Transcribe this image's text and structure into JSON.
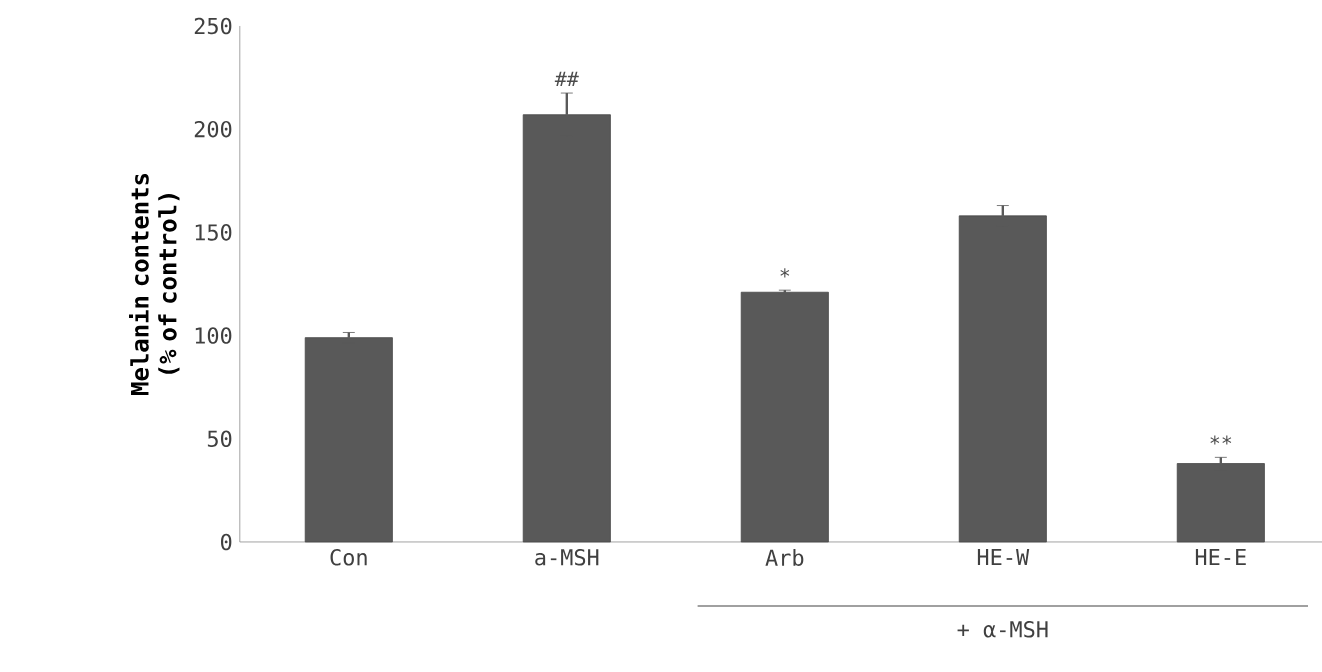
{
  "chart_data": {
    "type": "bar",
    "ylabel": "Melanin contents (% of control)",
    "categories": [
      "Con",
      "a-MSH",
      "Arb",
      "HE-W",
      "HE-E"
    ],
    "values": [
      99,
      207,
      121,
      158,
      38
    ],
    "errors": [
      2.5,
      10.5,
      1,
      5,
      3
    ],
    "color": "#595959",
    "ylim": [
      0,
      250
    ],
    "yticks": [
      0,
      50,
      100,
      150,
      200,
      250
    ],
    "annotations": [
      {
        "text": "##",
        "x": "a-MSH",
        "y": 217.5
      },
      {
        "text": "*",
        "x": "Arb",
        "y": 122
      },
      {
        "text": "**",
        "x": "HE-E",
        "y": 41
      },
      "+ α-MSH"
    ]
  }
}
